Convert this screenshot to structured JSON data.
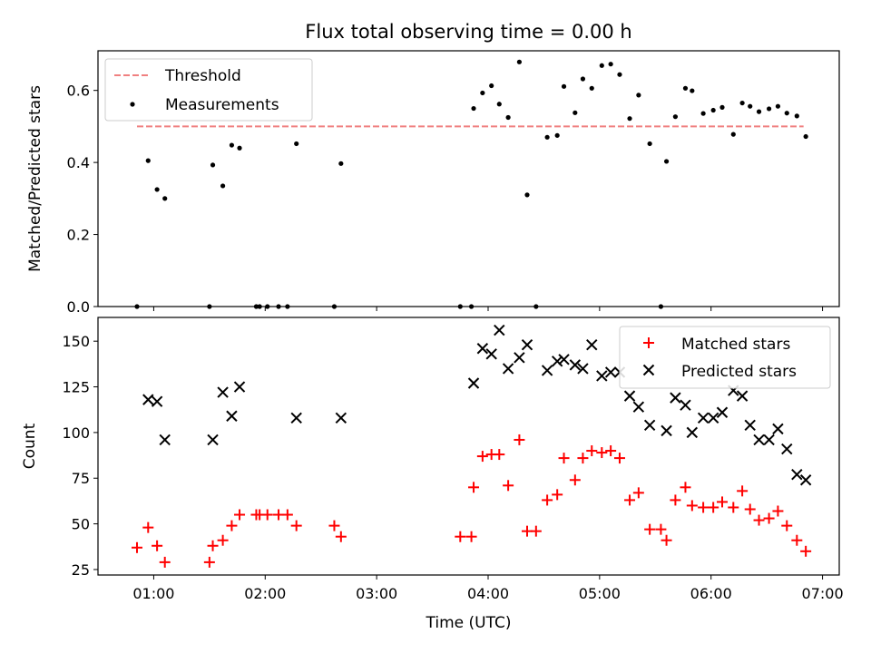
{
  "chart_data": {
    "title": "Flux total observing time = 0.00 h",
    "xlabel": "Time (UTC)",
    "x_unit": "hours UTC",
    "xlim": [
      0.5,
      7.15
    ],
    "x_ticks": [
      1,
      2,
      3,
      4,
      5,
      6,
      7
    ],
    "x_tick_labels": [
      "01:00",
      "02:00",
      "03:00",
      "04:00",
      "05:00",
      "06:00",
      "07:00"
    ],
    "panels": [
      {
        "type": "scatter",
        "ylabel": "Matched/Predicted stars",
        "ylim": [
          0,
          0.71
        ],
        "y_ticks": [
          0.0,
          0.2,
          0.4,
          0.6
        ],
        "y_tick_labels": [
          "0.0",
          "0.2",
          "0.4",
          "0.6"
        ],
        "legend_position": "top-left",
        "threshold": {
          "name": "Threshold",
          "y": 0.5,
          "x_range": [
            0.85,
            6.83
          ],
          "color": "#f08080"
        },
        "series": [
          {
            "name": "Measurements",
            "color": "#000000",
            "x": [
              0.85,
              0.95,
              1.03,
              1.1,
              1.5,
              1.53,
              1.62,
              1.7,
              1.77,
              1.92,
              1.95,
              2.02,
              2.12,
              2.2,
              2.28,
              2.62,
              2.68,
              3.75,
              3.85,
              3.87,
              3.95,
              4.03,
              4.1,
              4.18,
              4.28,
              4.35,
              4.43,
              4.53,
              4.62,
              4.68,
              4.78,
              4.85,
              4.93,
              5.02,
              5.1,
              5.18,
              5.27,
              5.35,
              5.45,
              5.55,
              5.6,
              5.68,
              5.77,
              5.83,
              5.93,
              6.02,
              6.1,
              6.2,
              6.28,
              6.35,
              6.43,
              6.52,
              6.6,
              6.68,
              6.77,
              6.85
            ],
            "y": [
              0.0,
              0.405,
              0.325,
              0.3,
              0.0,
              0.393,
              0.335,
              0.448,
              0.44,
              0.0,
              0.0,
              0.0,
              0.0,
              0.0,
              0.452,
              0.0,
              0.397,
              0.0,
              0.0,
              0.55,
              0.593,
              0.613,
              0.562,
              0.525,
              0.679,
              0.31,
              0.0,
              0.47,
              0.475,
              0.611,
              0.538,
              0.632,
              0.606,
              0.669,
              0.673,
              0.644,
              0.522,
              0.587,
              0.452,
              0.0,
              0.403,
              0.527,
              0.606,
              0.599,
              0.536,
              0.545,
              0.553,
              0.478,
              0.565,
              0.556,
              0.541,
              0.549,
              0.556,
              0.537,
              0.529,
              0.472
            ]
          }
        ]
      },
      {
        "type": "scatter",
        "ylabel": "Count",
        "ylim": [
          22,
          163
        ],
        "y_ticks": [
          25,
          50,
          75,
          100,
          125,
          150
        ],
        "y_tick_labels": [
          "25",
          "50",
          "75",
          "100",
          "125",
          "150"
        ],
        "legend_position": "top-right",
        "series": [
          {
            "name": "Matched stars",
            "marker": "+",
            "color": "#ff0000",
            "x": [
              0.85,
              0.95,
              1.03,
              1.1,
              1.5,
              1.53,
              1.62,
              1.7,
              1.77,
              1.92,
              1.95,
              2.02,
              2.12,
              2.2,
              2.28,
              2.62,
              2.68,
              3.75,
              3.85,
              3.87,
              3.95,
              4.03,
              4.1,
              4.18,
              4.28,
              4.35,
              4.43,
              4.53,
              4.62,
              4.68,
              4.78,
              4.85,
              4.93,
              5.02,
              5.1,
              5.18,
              5.27,
              5.35,
              5.45,
              5.55,
              5.6,
              5.68,
              5.77,
              5.83,
              5.93,
              6.02,
              6.1,
              6.2,
              6.28,
              6.35,
              6.43,
              6.52,
              6.6,
              6.68,
              6.77,
              6.85
            ],
            "y": [
              37,
              48,
              38,
              29,
              29,
              38,
              41,
              49,
              55,
              55,
              55,
              55,
              55,
              55,
              49,
              49,
              43,
              43,
              43,
              70,
              87,
              88,
              88,
              71,
              96,
              46,
              46,
              63,
              66,
              86,
              74,
              86,
              90,
              89,
              90,
              86,
              63,
              67,
              47,
              47,
              41,
              63,
              70,
              60,
              59,
              59,
              62,
              59,
              68,
              58,
              52,
              53,
              57,
              49,
              41,
              35
            ]
          },
          {
            "name": "Predicted stars",
            "marker": "x",
            "color": "#000000",
            "x": [
              0.95,
              1.03,
              1.1,
              1.53,
              1.62,
              1.7,
              1.77,
              2.28,
              2.68,
              3.87,
              3.95,
              4.03,
              4.1,
              4.18,
              4.28,
              4.35,
              4.53,
              4.62,
              4.68,
              4.78,
              4.85,
              4.93,
              5.02,
              5.1,
              5.18,
              5.27,
              5.35,
              5.45,
              5.6,
              5.68,
              5.77,
              5.83,
              5.93,
              6.02,
              6.1,
              6.2,
              6.28,
              6.35,
              6.43,
              6.52,
              6.6,
              6.68,
              6.77,
              6.85
            ],
            "y": [
              118,
              117,
              96,
              96,
              122,
              109,
              125,
              108,
              108,
              127,
              146,
              143,
              156,
              135,
              141,
              148,
              134,
              139,
              140,
              137,
              135,
              148,
              131,
              133,
              133,
              120,
              114,
              104,
              101,
              119,
              115,
              100,
              108,
              108,
              111,
              123,
              120,
              104,
              96,
              96,
              102,
              91,
              77,
              74
            ]
          }
        ]
      }
    ]
  }
}
